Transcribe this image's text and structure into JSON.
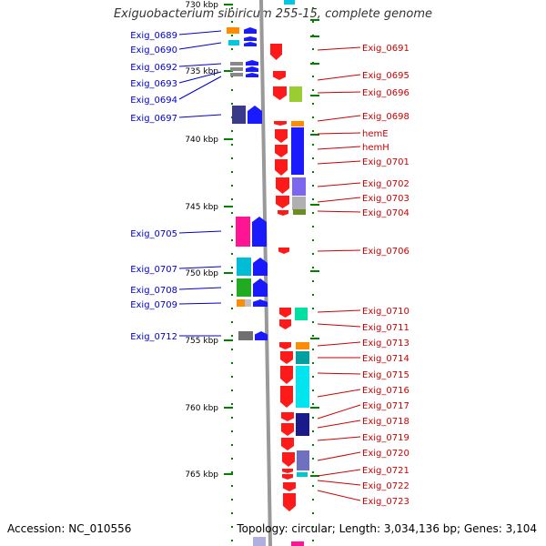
{
  "title": "Exiguobacterium sibiricum 255-15, complete genome",
  "footer": {
    "accession": "Accession: NC_010556",
    "topology": "Topology: circular; Length: 3,034,136 bp; Genes: 3,104"
  },
  "colors": {
    "forward_cds": "#1a1aff",
    "reverse_cds": "#ff1a1a",
    "label_left": "#0000cc",
    "label_right": "#cc0000",
    "backbone": "#999999",
    "tick": "#008000"
  },
  "scale_labels": [
    "730 kbp",
    "735 kbp",
    "740 kbp",
    "745 kbp",
    "750 kbp",
    "755 kbp",
    "760 kbp",
    "765 kbp"
  ],
  "left_labels": [
    "Exig_0689",
    "Exig_0690",
    "Exig_0692",
    "Exig_0693",
    "Exig_0694",
    "Exig_0697",
    "Exig_0705",
    "Exig_0707",
    "Exig_0708",
    "Exig_0709",
    "Exig_0712"
  ],
  "right_labels": [
    "Exig_0691",
    "Exig_0695",
    "Exig_0696",
    "Exig_0698",
    "hemE",
    "hemH",
    "Exig_0701",
    "Exig_0702",
    "Exig_0703",
    "Exig_0704",
    "Exig_0706",
    "Exig_0710",
    "Exig_0711",
    "Exig_0713",
    "Exig_0714",
    "Exig_0715",
    "Exig_0716",
    "Exig_0717",
    "Exig_0718",
    "Exig_0719",
    "Exig_0720",
    "Exig_0721",
    "Exig_0722",
    "Exig_0723"
  ]
}
